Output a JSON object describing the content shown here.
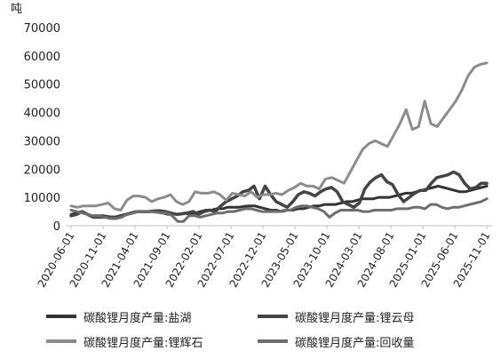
{
  "chart_data": {
    "type": "line",
    "title": "",
    "ylabel": "吨",
    "xlabel": "",
    "ylim": [
      0,
      70000
    ],
    "yticks": [
      0,
      10000,
      20000,
      30000,
      40000,
      50000,
      60000,
      70000
    ],
    "xtick_labels": [
      "2020-06-01",
      "2020-11-01",
      "2021-04-01",
      "2021-09-01",
      "2022-02-01",
      "2022-07-01",
      "2022-12-01",
      "2023-05-01",
      "2023-10-01",
      "2024-03-01",
      "2024-08-01",
      "2025-01-01",
      "2025-06-01",
      "2025-11-01"
    ],
    "x_start": "2020-06",
    "x_end": "2025-11",
    "grid": false,
    "legend_position": "bottom",
    "series": [
      {
        "name": "碳酸锂月度产量:盐湖",
        "color": "#333333",
        "values": [
          4000,
          4500,
          5000,
          4000,
          3500,
          3500,
          3500,
          3200,
          3000,
          3500,
          4000,
          4500,
          5000,
          5000,
          5000,
          5000,
          4800,
          4500,
          4000,
          4200,
          4000,
          4500,
          4000,
          4500,
          5000,
          5500,
          5500,
          6000,
          6000,
          6500,
          6500,
          6500,
          6800,
          7000,
          7000,
          6500,
          6000,
          5500,
          5500,
          5000,
          5500,
          5500,
          6000,
          6000,
          6500,
          7000,
          7000,
          7500,
          7500,
          7500,
          8000,
          8500,
          8500,
          9000,
          9500,
          9500,
          9500,
          10000,
          10000,
          10000,
          10500,
          11000,
          11500,
          11500,
          12000,
          12500,
          13000,
          13500,
          14000,
          13500,
          13000,
          12500,
          12000,
          12000,
          12500,
          13000,
          13500,
          14000
        ]
      },
      {
        "name": "碳酸锂月度产量:锂云母",
        "color": "#444444",
        "values": [
          3500,
          4000,
          5000,
          4000,
          3000,
          3000,
          3000,
          3000,
          3000,
          3200,
          4000,
          4500,
          5000,
          5000,
          5000,
          5200,
          5300,
          5000,
          4500,
          4000,
          4200,
          4500,
          5000,
          4000,
          5000,
          5500,
          5000,
          7000,
          8500,
          9500,
          10500,
          12000,
          12500,
          14000,
          9500,
          14000,
          11000,
          8500,
          7500,
          6500,
          8500,
          11000,
          12000,
          11500,
          10500,
          12000,
          13000,
          13500,
          12000,
          8500,
          7500,
          6500,
          8000,
          13000,
          15500,
          17000,
          18000,
          15500,
          14500,
          11000,
          8500,
          10000,
          11500,
          12500,
          12500,
          15000,
          17000,
          17500,
          18000,
          19000,
          18000,
          15000,
          13000,
          13500,
          15000,
          15000
        ]
      },
      {
        "name": "碳酸锂月度产量:锂辉石",
        "color": "#8c8c8c",
        "values": [
          7000,
          6500,
          7000,
          7000,
          7000,
          7500,
          8000,
          6000,
          5500,
          9000,
          10500,
          10500,
          10000,
          8500,
          9500,
          10000,
          11000,
          8500,
          7500,
          8500,
          12000,
          11500,
          11500,
          12000,
          11000,
          9000,
          11500,
          11000,
          10500,
          12000,
          10000,
          11000,
          11000,
          11500,
          11000,
          12500,
          13500,
          15000,
          14000,
          14000,
          13000,
          16500,
          17000,
          16000,
          15000,
          19000,
          23000,
          27000,
          29000,
          30000,
          29000,
          28000,
          32000,
          36000,
          41000,
          34000,
          35000,
          44000,
          36000,
          35000,
          38000,
          41000,
          44000,
          48000,
          53000,
          56000,
          57000,
          57500
        ]
      },
      {
        "name": "碳酸锂月度产量:回收量",
        "color": "#6e6e6e",
        "values": [
          5500,
          5000,
          4500,
          4000,
          3500,
          3500,
          3000,
          2500,
          2500,
          3000,
          4000,
          4500,
          5000,
          5000,
          5000,
          4800,
          4500,
          4500,
          3500,
          1500,
          1500,
          3500,
          3500,
          3000,
          3500,
          4000,
          4500,
          4500,
          5000,
          5000,
          5500,
          6000,
          6000,
          5500,
          5000,
          5000,
          5000,
          5000,
          5500,
          5500,
          6500,
          7000,
          7000,
          6500,
          6000,
          5000,
          3000,
          4500,
          5500,
          5500,
          5500,
          5500,
          5000,
          5000,
          5500,
          5500,
          5500,
          5500,
          6000,
          6000,
          6000,
          6500,
          6500,
          6000,
          7500,
          7500,
          6500,
          6000,
          6500,
          6500,
          7000,
          7500,
          8000,
          8500,
          9500
        ]
      }
    ]
  }
}
